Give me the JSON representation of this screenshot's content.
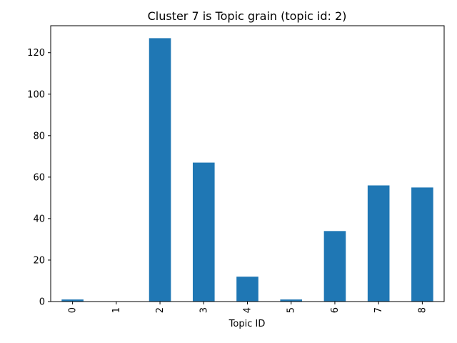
{
  "chart_data": {
    "type": "bar",
    "title": "Cluster 7 is Topic grain (topic id: 2)",
    "xlabel": "Topic ID",
    "ylabel": "",
    "categories": [
      "0",
      "1",
      "2",
      "3",
      "4",
      "5",
      "6",
      "7",
      "8"
    ],
    "values": [
      1,
      0,
      127,
      67,
      12,
      1,
      34,
      56,
      55
    ],
    "ylim": [
      0,
      133
    ],
    "yticks": [
      0,
      20,
      40,
      60,
      80,
      100,
      120
    ],
    "grid": false,
    "legend": "none",
    "bar_color": "#1f77b4",
    "x_tick_rotation": "vertical"
  }
}
